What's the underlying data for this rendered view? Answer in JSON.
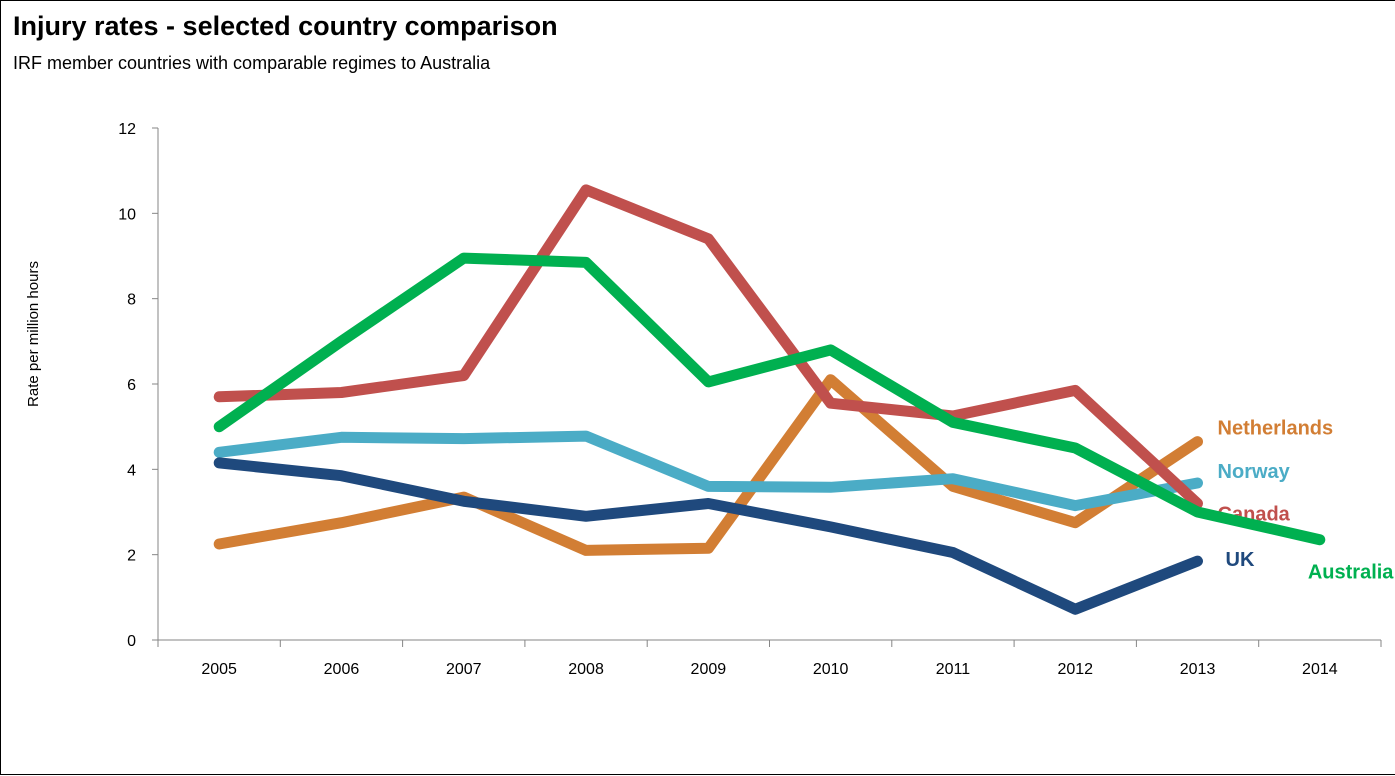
{
  "chart_data": {
    "type": "line",
    "title": "Injury rates - selected country comparison",
    "subtitle": "IRF member countries  with comparable  regimes  to Australia",
    "xlabel": "",
    "ylabel": "Rate per million hours",
    "ylim": [
      0,
      12
    ],
    "yticks": [
      0,
      2,
      4,
      6,
      8,
      10,
      12
    ],
    "categories": [
      "2005",
      "2006",
      "2007",
      "2008",
      "2009",
      "2010",
      "2011",
      "2012",
      "2013",
      "2014"
    ],
    "grid": false,
    "legend": "direct labels at line ends",
    "series": [
      {
        "name": "Netherlands",
        "color": "#D27E34",
        "values": [
          2.25,
          2.75,
          3.35,
          2.1,
          2.15,
          6.1,
          3.6,
          2.75,
          4.65,
          null
        ]
      },
      {
        "name": "Norway",
        "color": "#4BACC6",
        "values": [
          4.4,
          4.75,
          4.72,
          4.78,
          3.6,
          3.58,
          3.78,
          3.15,
          3.68,
          null
        ]
      },
      {
        "name": "Canada",
        "color": "#C0504D",
        "values": [
          5.7,
          5.8,
          6.2,
          10.55,
          9.4,
          5.55,
          5.25,
          5.85,
          3.2,
          null
        ]
      },
      {
        "name": "UK",
        "color": "#1F497D",
        "values": [
          4.15,
          3.85,
          3.25,
          2.9,
          3.2,
          2.65,
          2.05,
          0.72,
          1.85,
          null
        ]
      },
      {
        "name": "Australia",
        "color": "#00B050",
        "values": [
          5.0,
          7.0,
          8.95,
          8.85,
          6.05,
          6.8,
          5.1,
          4.5,
          3.0,
          2.35
        ]
      }
    ]
  }
}
